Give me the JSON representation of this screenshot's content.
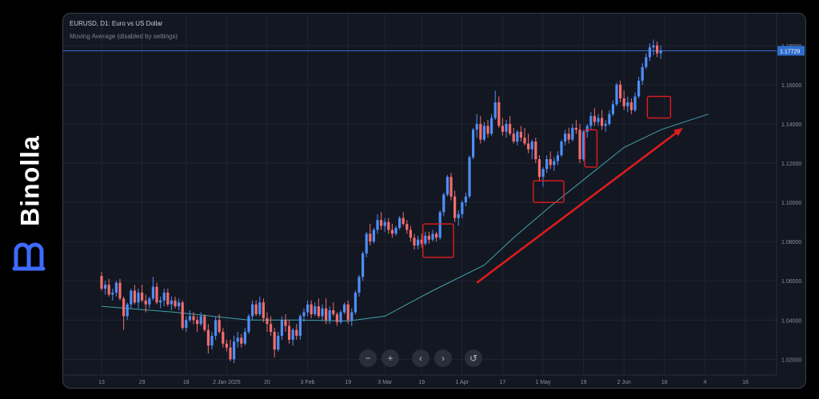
{
  "brand": {
    "name": "Binolla",
    "accent": "#3d6bff"
  },
  "chart_header": {
    "title": "EURUSD, D1: Euro vs US Dollar",
    "indicator": "Moving Average (disabled by settings)"
  },
  "controls": [
    {
      "icon": "zoom-out-icon",
      "glyph": "−"
    },
    {
      "icon": "zoom-in-icon",
      "glyph": "+"
    },
    {
      "icon": "scroll-left-icon",
      "glyph": "‹"
    },
    {
      "icon": "scroll-right-icon",
      "glyph": "›"
    },
    {
      "icon": "reset-icon",
      "glyph": "↺"
    }
  ],
  "chart_data": {
    "type": "candlestick",
    "symbol": "EURUSD",
    "timeframe": "D1",
    "ylim": [
      1.012,
      1.184
    ],
    "yticks": [
      "1.18000",
      "1.16000",
      "1.14000",
      "1.12000",
      "1.10000",
      "1.08000",
      "1.06000",
      "1.04000",
      "1.02000"
    ],
    "ytick_values": [
      1.18,
      1.16,
      1.14,
      1.12,
      1.1,
      1.08,
      1.06,
      1.04,
      1.02
    ],
    "xticks": [
      "13",
      "29",
      "18",
      "2 Jan 2025",
      "20",
      "3 Feb",
      "19",
      "3 Mar",
      "19",
      "1 Apr",
      "17",
      "1 May",
      "19",
      "2 Jun",
      "18",
      "4",
      "16"
    ],
    "xtick_index": [
      0,
      11,
      23,
      34,
      45,
      56,
      67,
      77,
      87,
      98,
      109,
      120,
      131,
      142,
      153,
      164,
      175
    ],
    "current_price": 1.17729,
    "current_price_label": "1.17729",
    "up_color": "#4e8ef7",
    "down_color": "#f26d6d",
    "ma_color": "#3fa3ad",
    "price_line_color": "#2f6ecf",
    "annotation_color": "#e11d1d",
    "candles": [
      [
        1.0625,
        1.0645,
        1.055,
        1.056
      ],
      [
        1.056,
        1.06,
        1.053,
        1.058
      ],
      [
        1.058,
        1.061,
        1.052,
        1.053
      ],
      [
        1.053,
        1.056,
        1.05,
        1.054
      ],
      [
        1.054,
        1.06,
        1.052,
        1.059
      ],
      [
        1.059,
        1.061,
        1.05,
        1.051
      ],
      [
        1.051,
        1.052,
        1.035,
        1.042
      ],
      [
        1.042,
        1.049,
        1.04,
        1.048
      ],
      [
        1.048,
        1.056,
        1.046,
        1.055
      ],
      [
        1.055,
        1.058,
        1.048,
        1.049
      ],
      [
        1.049,
        1.056,
        1.046,
        1.054
      ],
      [
        1.054,
        1.058,
        1.049,
        1.05
      ],
      [
        1.05,
        1.053,
        1.044,
        1.048
      ],
      [
        1.048,
        1.052,
        1.046,
        1.051
      ],
      [
        1.051,
        1.062,
        1.05,
        1.057
      ],
      [
        1.057,
        1.059,
        1.048,
        1.049
      ],
      [
        1.049,
        1.052,
        1.046,
        1.05
      ],
      [
        1.05,
        1.056,
        1.047,
        1.054
      ],
      [
        1.054,
        1.056,
        1.047,
        1.048
      ],
      [
        1.048,
        1.052,
        1.045,
        1.05
      ],
      [
        1.05,
        1.052,
        1.046,
        1.047
      ],
      [
        1.047,
        1.051,
        1.045,
        1.049
      ],
      [
        1.049,
        1.05,
        1.035,
        1.036
      ],
      [
        1.036,
        1.042,
        1.034,
        1.04
      ],
      [
        1.04,
        1.045,
        1.039,
        1.042
      ],
      [
        1.042,
        1.044,
        1.038,
        1.04
      ],
      [
        1.04,
        1.042,
        1.034,
        1.038
      ],
      [
        1.038,
        1.044,
        1.037,
        1.042
      ],
      [
        1.042,
        1.043,
        1.034,
        1.035
      ],
      [
        1.035,
        1.038,
        1.023,
        1.027
      ],
      [
        1.027,
        1.034,
        1.025,
        1.032
      ],
      [
        1.032,
        1.042,
        1.03,
        1.04
      ],
      [
        1.04,
        1.043,
        1.033,
        1.034
      ],
      [
        1.034,
        1.036,
        1.026,
        1.028
      ],
      [
        1.028,
        1.03,
        1.024,
        1.026
      ],
      [
        1.026,
        1.03,
        1.019,
        1.02
      ],
      [
        1.02,
        1.032,
        1.018,
        1.029
      ],
      [
        1.029,
        1.034,
        1.026,
        1.031
      ],
      [
        1.031,
        1.033,
        1.026,
        1.028
      ],
      [
        1.028,
        1.036,
        1.027,
        1.034
      ],
      [
        1.034,
        1.043,
        1.033,
        1.042
      ],
      [
        1.042,
        1.05,
        1.04,
        1.048
      ],
      [
        1.048,
        1.05,
        1.042,
        1.043
      ],
      [
        1.043,
        1.052,
        1.042,
        1.049
      ],
      [
        1.049,
        1.051,
        1.039,
        1.041
      ],
      [
        1.041,
        1.044,
        1.034,
        1.038
      ],
      [
        1.038,
        1.042,
        1.032,
        1.034
      ],
      [
        1.034,
        1.036,
        1.021,
        1.025
      ],
      [
        1.025,
        1.034,
        1.024,
        1.032
      ],
      [
        1.032,
        1.042,
        1.03,
        1.04
      ],
      [
        1.04,
        1.043,
        1.034,
        1.037
      ],
      [
        1.037,
        1.04,
        1.028,
        1.03
      ],
      [
        1.03,
        1.036,
        1.027,
        1.035
      ],
      [
        1.035,
        1.038,
        1.03,
        1.032
      ],
      [
        1.032,
        1.043,
        1.03,
        1.042
      ],
      [
        1.042,
        1.046,
        1.039,
        1.044
      ],
      [
        1.044,
        1.05,
        1.042,
        1.048
      ],
      [
        1.048,
        1.05,
        1.041,
        1.043
      ],
      [
        1.043,
        1.049,
        1.042,
        1.047
      ],
      [
        1.047,
        1.051,
        1.041,
        1.042
      ],
      [
        1.042,
        1.048,
        1.04,
        1.046
      ],
      [
        1.046,
        1.051,
        1.038,
        1.04
      ],
      [
        1.04,
        1.047,
        1.038,
        1.045
      ],
      [
        1.045,
        1.049,
        1.042,
        1.043
      ],
      [
        1.043,
        1.044,
        1.037,
        1.039
      ],
      [
        1.039,
        1.045,
        1.038,
        1.044
      ],
      [
        1.044,
        1.049,
        1.043,
        1.048
      ],
      [
        1.048,
        1.05,
        1.038,
        1.04
      ],
      [
        1.04,
        1.046,
        1.037,
        1.044
      ],
      [
        1.044,
        1.055,
        1.043,
        1.054
      ],
      [
        1.054,
        1.063,
        1.052,
        1.062
      ],
      [
        1.062,
        1.075,
        1.06,
        1.074
      ],
      [
        1.074,
        1.085,
        1.072,
        1.084
      ],
      [
        1.084,
        1.089,
        1.078,
        1.08
      ],
      [
        1.08,
        1.087,
        1.079,
        1.086
      ],
      [
        1.086,
        1.094,
        1.084,
        1.091
      ],
      [
        1.091,
        1.095,
        1.086,
        1.088
      ],
      [
        1.088,
        1.092,
        1.085,
        1.09
      ],
      [
        1.09,
        1.092,
        1.084,
        1.086
      ],
      [
        1.086,
        1.089,
        1.082,
        1.084
      ],
      [
        1.084,
        1.088,
        1.083,
        1.087
      ],
      [
        1.087,
        1.093,
        1.086,
        1.092
      ],
      [
        1.092,
        1.095,
        1.088,
        1.089
      ],
      [
        1.089,
        1.091,
        1.084,
        1.086
      ],
      [
        1.086,
        1.088,
        1.08,
        1.082
      ],
      [
        1.082,
        1.084,
        1.076,
        1.078
      ],
      [
        1.078,
        1.083,
        1.076,
        1.081
      ],
      [
        1.081,
        1.084,
        1.077,
        1.079
      ],
      [
        1.079,
        1.085,
        1.078,
        1.083
      ],
      [
        1.083,
        1.085,
        1.079,
        1.081
      ],
      [
        1.081,
        1.086,
        1.08,
        1.084
      ],
      [
        1.084,
        1.085,
        1.08,
        1.082
      ],
      [
        1.082,
        1.096,
        1.081,
        1.095
      ],
      [
        1.095,
        1.105,
        1.093,
        1.104
      ],
      [
        1.104,
        1.114,
        1.103,
        1.113
      ],
      [
        1.113,
        1.115,
        1.101,
        1.103
      ],
      [
        1.103,
        1.106,
        1.09,
        1.092
      ],
      [
        1.092,
        1.096,
        1.088,
        1.094
      ],
      [
        1.094,
        1.101,
        1.092,
        1.1
      ],
      [
        1.1,
        1.105,
        1.098,
        1.103
      ],
      [
        1.103,
        1.124,
        1.102,
        1.123
      ],
      [
        1.123,
        1.138,
        1.122,
        1.137
      ],
      [
        1.137,
        1.145,
        1.133,
        1.14
      ],
      [
        1.14,
        1.144,
        1.13,
        1.132
      ],
      [
        1.132,
        1.141,
        1.131,
        1.139
      ],
      [
        1.139,
        1.142,
        1.133,
        1.135
      ],
      [
        1.135,
        1.145,
        1.134,
        1.143
      ],
      [
        1.143,
        1.157,
        1.142,
        1.151
      ],
      [
        1.151,
        1.154,
        1.138,
        1.139
      ],
      [
        1.139,
        1.143,
        1.134,
        1.136
      ],
      [
        1.136,
        1.142,
        1.133,
        1.14
      ],
      [
        1.14,
        1.144,
        1.134,
        1.135
      ],
      [
        1.135,
        1.138,
        1.13,
        1.131
      ],
      [
        1.131,
        1.137,
        1.129,
        1.136
      ],
      [
        1.136,
        1.139,
        1.131,
        1.133
      ],
      [
        1.133,
        1.138,
        1.129,
        1.13
      ],
      [
        1.13,
        1.135,
        1.125,
        1.127
      ],
      [
        1.127,
        1.132,
        1.122,
        1.131
      ],
      [
        1.131,
        1.133,
        1.12,
        1.122
      ],
      [
        1.122,
        1.124,
        1.111,
        1.113
      ],
      [
        1.113,
        1.118,
        1.108,
        1.117
      ],
      [
        1.117,
        1.124,
        1.115,
        1.122
      ],
      [
        1.122,
        1.126,
        1.117,
        1.119
      ],
      [
        1.119,
        1.123,
        1.116,
        1.121
      ],
      [
        1.121,
        1.126,
        1.119,
        1.124
      ],
      [
        1.124,
        1.132,
        1.123,
        1.131
      ],
      [
        1.131,
        1.137,
        1.129,
        1.135
      ],
      [
        1.135,
        1.138,
        1.13,
        1.132
      ],
      [
        1.132,
        1.14,
        1.131,
        1.138
      ],
      [
        1.138,
        1.142,
        1.135,
        1.137
      ],
      [
        1.137,
        1.14,
        1.12,
        1.122
      ],
      [
        1.122,
        1.137,
        1.121,
        1.136
      ],
      [
        1.136,
        1.14,
        1.133,
        1.139
      ],
      [
        1.139,
        1.146,
        1.137,
        1.144
      ],
      [
        1.144,
        1.148,
        1.139,
        1.141
      ],
      [
        1.141,
        1.145,
        1.139,
        1.143
      ],
      [
        1.143,
        1.147,
        1.137,
        1.139
      ],
      [
        1.139,
        1.142,
        1.136,
        1.14
      ],
      [
        1.14,
        1.147,
        1.139,
        1.145
      ],
      [
        1.145,
        1.152,
        1.144,
        1.15
      ],
      [
        1.15,
        1.161,
        1.149,
        1.16
      ],
      [
        1.16,
        1.162,
        1.151,
        1.153
      ],
      [
        1.153,
        1.157,
        1.147,
        1.149
      ],
      [
        1.149,
        1.154,
        1.146,
        1.151
      ],
      [
        1.151,
        1.153,
        1.145,
        1.147
      ],
      [
        1.147,
        1.156,
        1.146,
        1.154
      ],
      [
        1.154,
        1.164,
        1.153,
        1.162
      ],
      [
        1.162,
        1.171,
        1.16,
        1.169
      ],
      [
        1.169,
        1.176,
        1.168,
        1.174
      ],
      [
        1.174,
        1.181,
        1.172,
        1.179
      ],
      [
        1.179,
        1.183,
        1.175,
        1.18
      ],
      [
        1.18,
        1.182,
        1.174,
        1.176
      ],
      [
        1.176,
        1.18,
        1.173,
        1.1773
      ]
    ],
    "moving_average": [
      [
        0,
        1.047
      ],
      [
        20,
        1.044
      ],
      [
        40,
        1.04
      ],
      [
        55,
        1.04
      ],
      [
        67,
        1.0395
      ],
      [
        77,
        1.042
      ],
      [
        90,
        1.055
      ],
      [
        104,
        1.068
      ],
      [
        112,
        1.082
      ],
      [
        122,
        1.098
      ],
      [
        132,
        1.113
      ],
      [
        142,
        1.128
      ],
      [
        152,
        1.137
      ],
      [
        160,
        1.142
      ],
      [
        165,
        1.145
      ]
    ],
    "highlight_boxes": [
      {
        "i0": 88,
        "i1": 95,
        "y0": 1.072,
        "y1": 1.089
      },
      {
        "i0": 118,
        "i1": 125,
        "y0": 1.1,
        "y1": 1.111
      },
      {
        "i0": 132,
        "i1": 134,
        "y0": 1.118,
        "y1": 1.137
      },
      {
        "i0": 149,
        "i1": 154,
        "y0": 1.143,
        "y1": 1.154
      }
    ],
    "trend_arrow": {
      "from": [
        102,
        1.059
      ],
      "to": [
        158,
        1.138
      ]
    }
  }
}
